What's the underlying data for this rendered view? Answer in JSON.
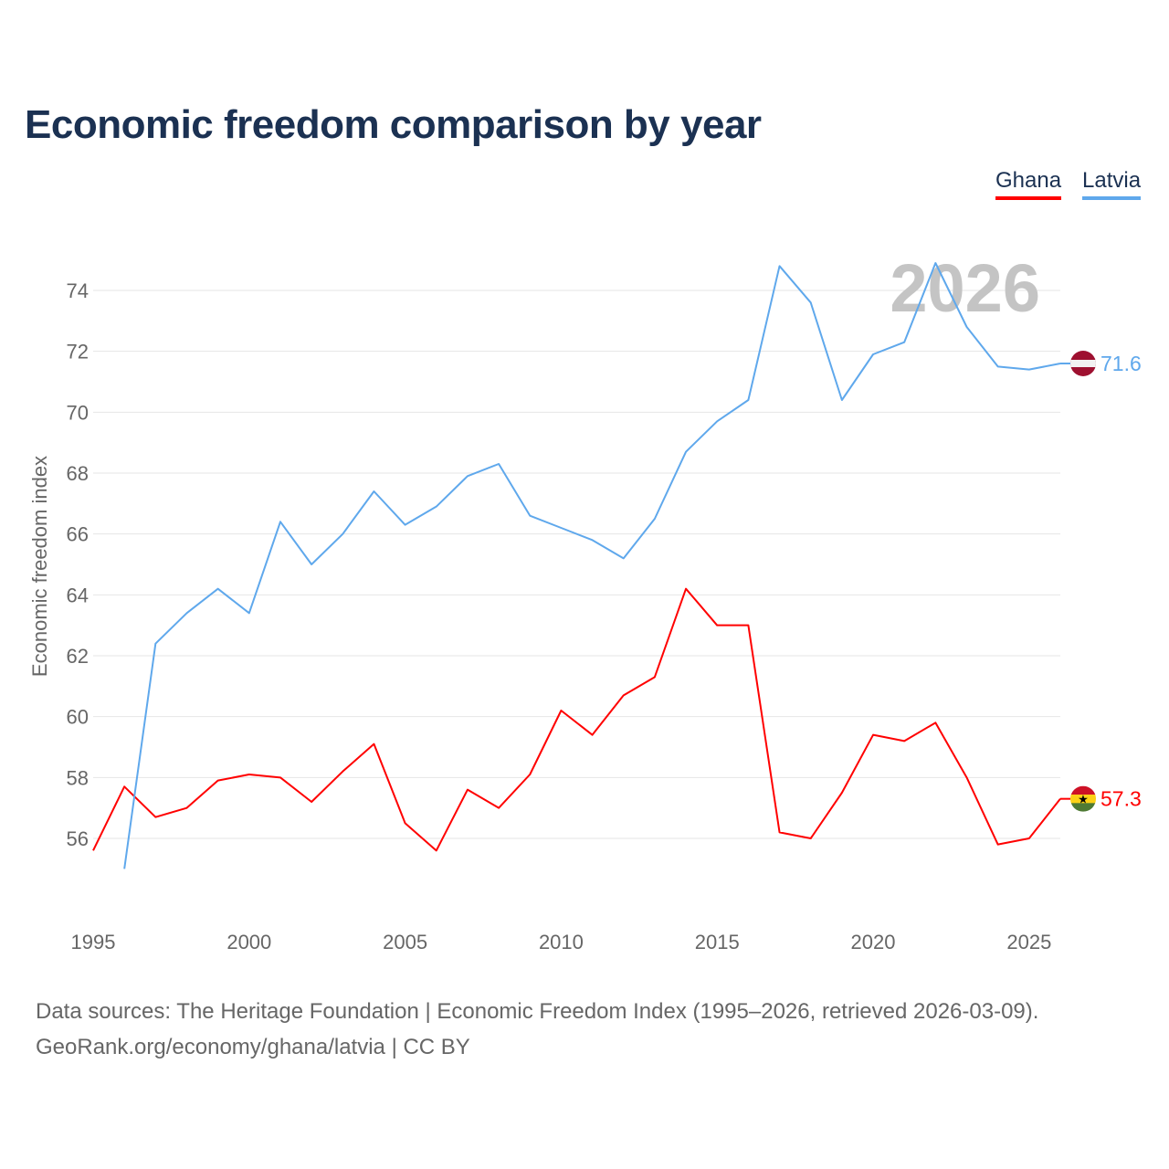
{
  "chart_data": {
    "type": "line",
    "title": "Economic freedom comparison by year",
    "xlabel": "",
    "ylabel": "Economic freedom index",
    "xlim": [
      1995,
      2026
    ],
    "ylim": [
      56,
      74
    ],
    "grid": true,
    "legend_position": "top-right",
    "watermark_year": "2026",
    "x_ticks": [
      "1995",
      "2000",
      "2005",
      "2010",
      "2015",
      "2020",
      "2025"
    ],
    "y_ticks": [
      "56",
      "58",
      "60",
      "62",
      "64",
      "66",
      "68",
      "70",
      "72",
      "74"
    ],
    "series": [
      {
        "name": "Ghana",
        "color": "#ff0000",
        "end_label": "57.3",
        "x": [
          1995,
          1996,
          1997,
          1998,
          1999,
          2000,
          2001,
          2002,
          2003,
          2004,
          2005,
          2006,
          2007,
          2008,
          2009,
          2010,
          2011,
          2012,
          2013,
          2014,
          2015,
          2016,
          2017,
          2018,
          2019,
          2020,
          2021,
          2022,
          2023,
          2024,
          2025,
          2026
        ],
        "values": [
          55.6,
          57.7,
          56.7,
          57.0,
          57.9,
          58.1,
          58.0,
          57.2,
          58.2,
          59.1,
          56.5,
          55.6,
          57.6,
          57.0,
          58.1,
          60.2,
          59.4,
          60.7,
          61.3,
          64.2,
          63.0,
          63.0,
          56.2,
          56.0,
          57.5,
          59.4,
          59.2,
          59.8,
          58.0,
          55.8,
          56.0,
          57.3
        ]
      },
      {
        "name": "Latvia",
        "color": "#5fa8ec",
        "end_label": "71.6",
        "x": [
          1996,
          1997,
          1998,
          1999,
          2000,
          2001,
          2002,
          2003,
          2004,
          2005,
          2006,
          2007,
          2008,
          2009,
          2010,
          2011,
          2012,
          2013,
          2014,
          2015,
          2016,
          2017,
          2018,
          2019,
          2020,
          2021,
          2022,
          2023,
          2024,
          2025,
          2026
        ],
        "values": [
          55.0,
          62.4,
          63.4,
          64.2,
          63.4,
          66.4,
          65.0,
          66.0,
          67.4,
          66.3,
          66.9,
          67.9,
          68.3,
          66.6,
          66.2,
          65.8,
          65.2,
          66.5,
          68.7,
          69.7,
          70.4,
          74.8,
          73.6,
          70.4,
          71.9,
          72.3,
          74.9,
          72.8,
          71.5,
          71.4,
          71.6
        ]
      }
    ]
  },
  "source": {
    "line1": "Data sources: The Heritage Foundation | Economic Freedom Index (1995–2026, retrieved 2026-03-09).",
    "line2": "GeoRank.org/economy/ghana/latvia | CC BY"
  }
}
